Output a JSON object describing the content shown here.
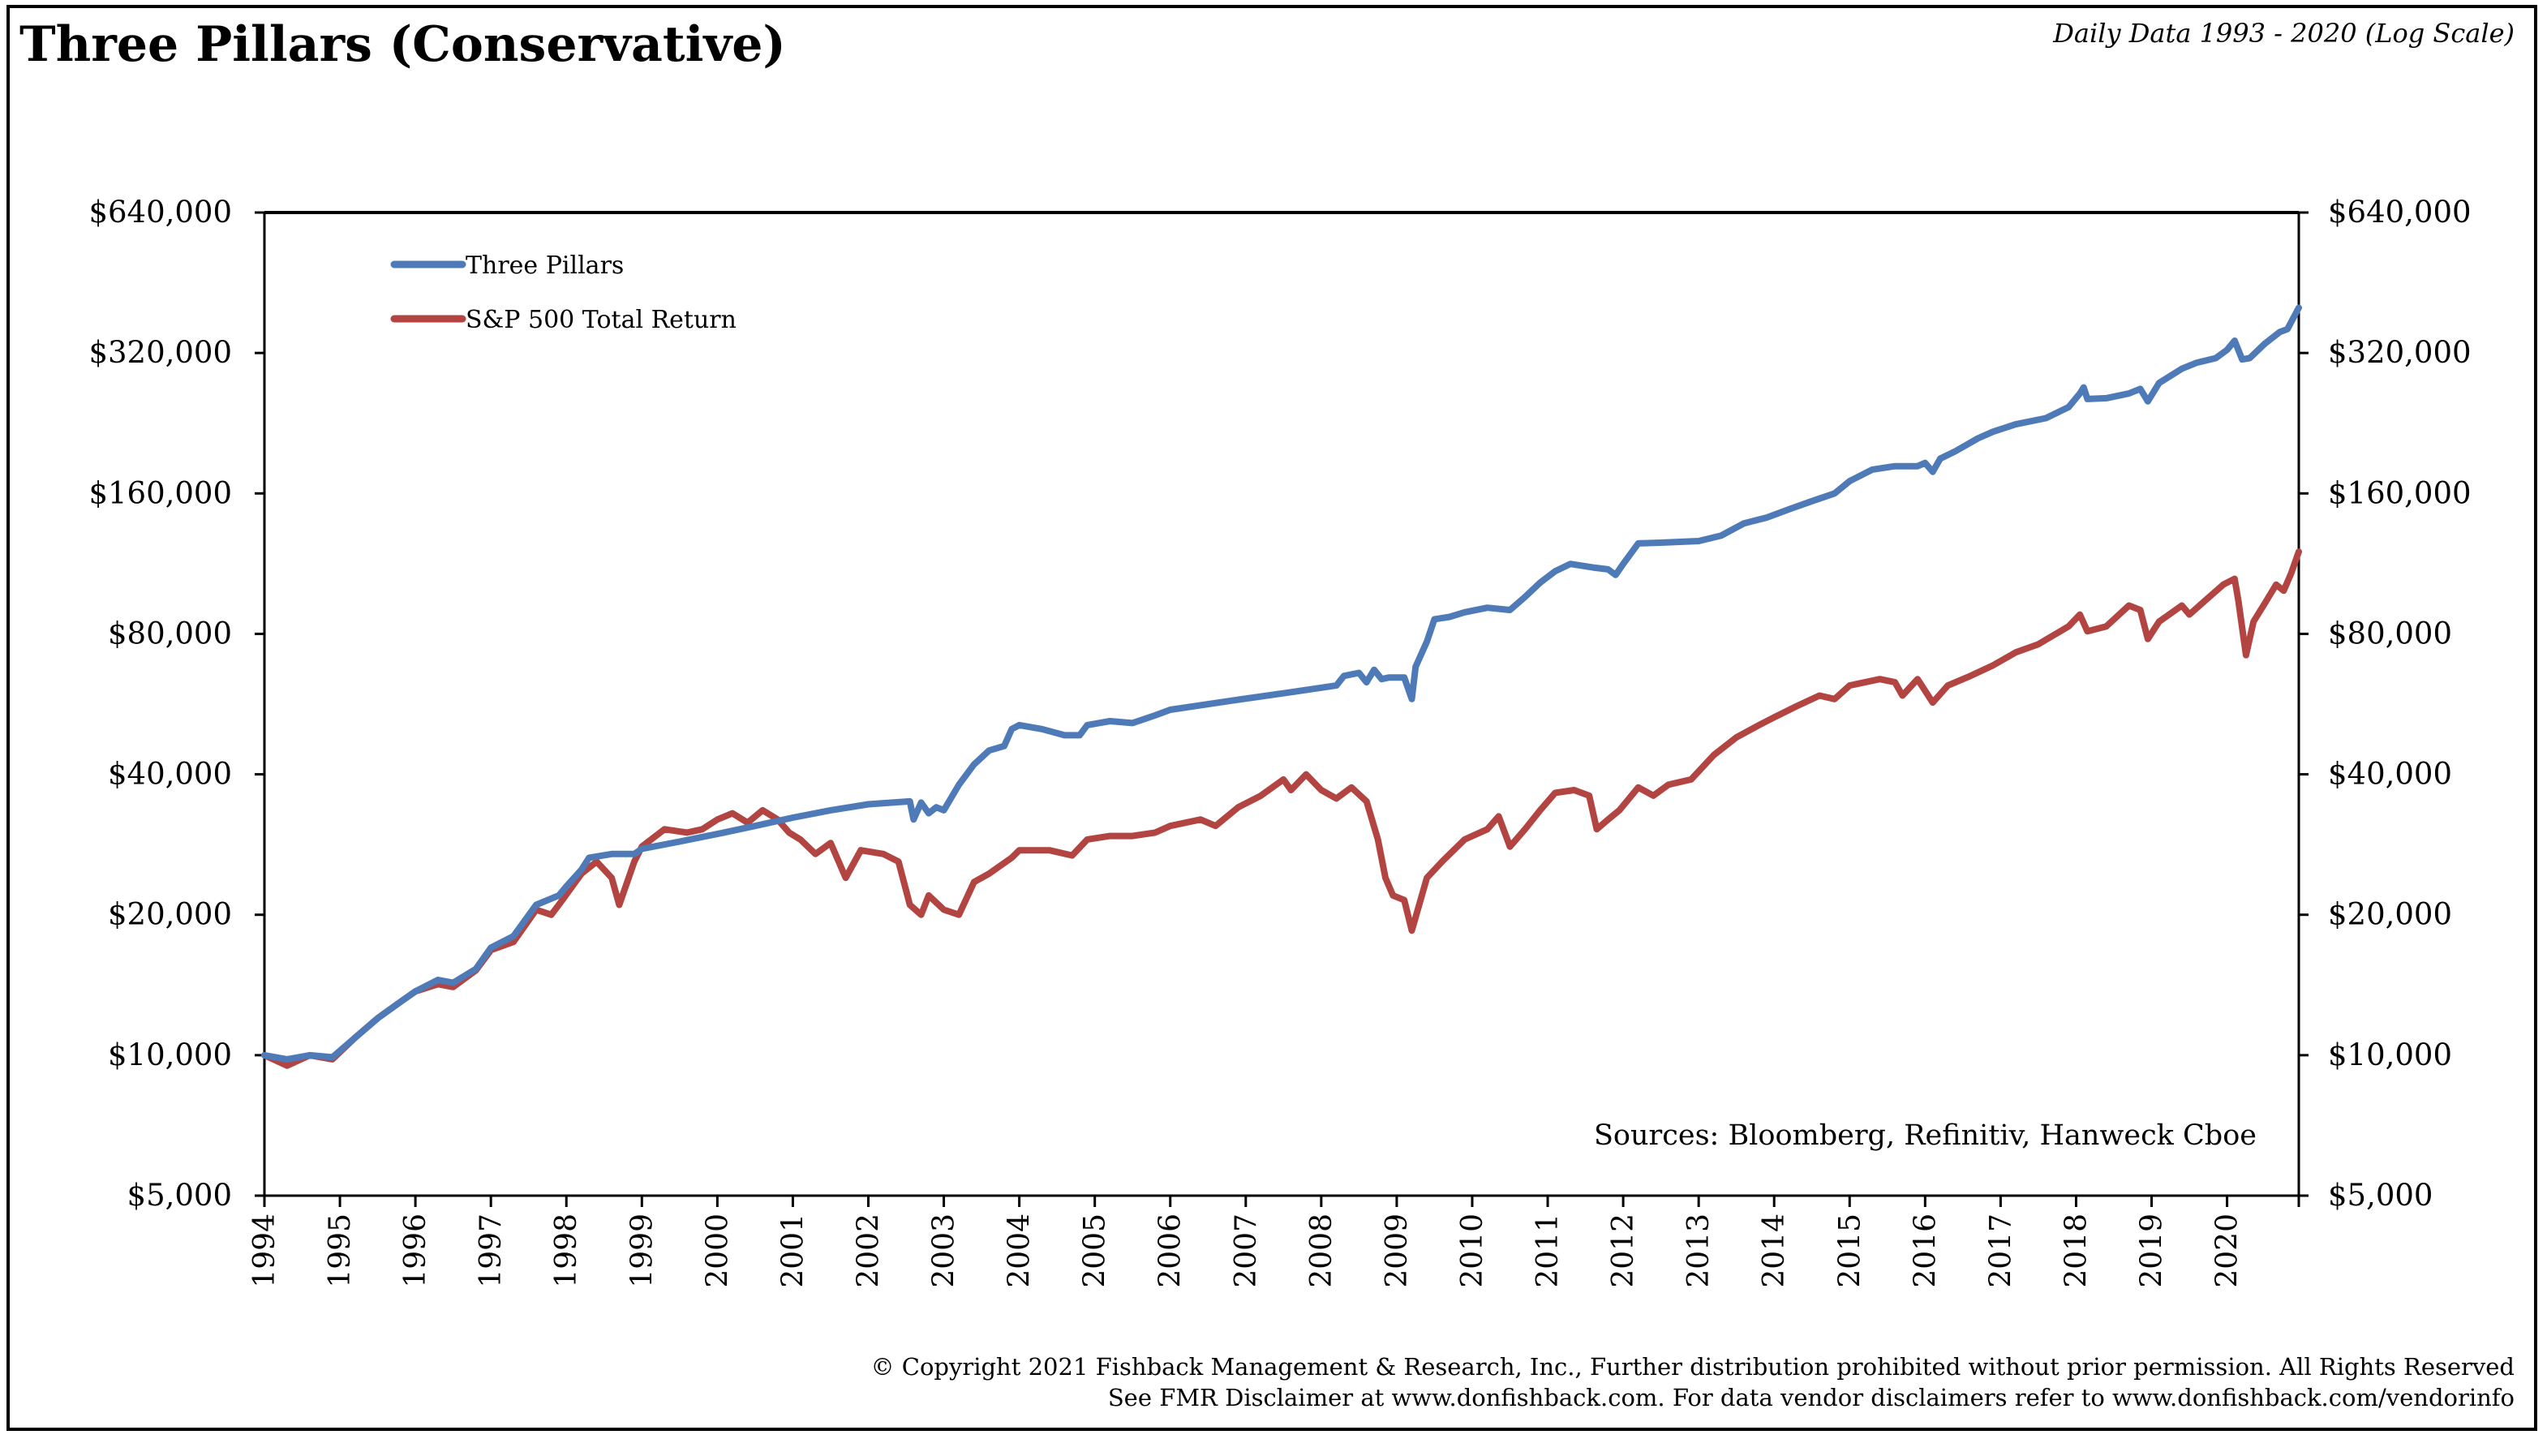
{
  "header": {
    "title": "Three Pillars (Conservative)",
    "subtitle": "Daily Data 1993 - 2020 (Log Scale)"
  },
  "footer": {
    "line1": "© Copyright 2021 Fishback Management & Research, Inc., Further distribution prohibited without prior permission. All Rights Reserved",
    "line2": "See FMR Disclaimer at www.donfishback.com. For data vendor disclaimers refer to www.donfishback.com/vendorinfo"
  },
  "chart_data": {
    "type": "line",
    "title": "Three Pillars (Conservative)",
    "y_scale": "log",
    "ylim": [
      5000,
      640000
    ],
    "y_ticks": [
      5000,
      10000,
      20000,
      40000,
      80000,
      160000,
      320000,
      640000
    ],
    "y_tick_labels": [
      "$5,000",
      "$10,000",
      "$20,000",
      "$40,000",
      "$80,000",
      "$160,000",
      "$320,000",
      "$640,000"
    ],
    "xlim": [
      1994.0,
      2020.95
    ],
    "x_ticks": [
      1994,
      1995,
      1996,
      1997,
      1998,
      1999,
      2000,
      2001,
      2002,
      2003,
      2004,
      2005,
      2006,
      2007,
      2008,
      2009,
      2010,
      2011,
      2012,
      2013,
      2014,
      2015,
      2016,
      2017,
      2018,
      2019,
      2020
    ],
    "x_tick_labels": [
      "1994",
      "1995",
      "1996",
      "1997",
      "1998",
      "1999",
      "2000",
      "2001",
      "2002",
      "2003",
      "2004",
      "2005",
      "2006",
      "2007",
      "2008",
      "2009",
      "2010",
      "2011",
      "2012",
      "2013",
      "2014",
      "2015",
      "2016",
      "2017",
      "2018",
      "2019",
      "2020"
    ],
    "legend_position": "top-left",
    "annotation": "Sources: Bloomberg, Refinitiv, Hanweck Cboe",
    "series": [
      {
        "name": "Three Pillars",
        "color": "#4f7ab8",
        "points": [
          [
            1994.0,
            10000
          ],
          [
            1994.3,
            9800
          ],
          [
            1994.6,
            10000
          ],
          [
            1994.9,
            9900
          ],
          [
            1995.2,
            10900
          ],
          [
            1995.5,
            12000
          ],
          [
            1995.8,
            13000
          ],
          [
            1996.0,
            13700
          ],
          [
            1996.3,
            14500
          ],
          [
            1996.5,
            14300
          ],
          [
            1996.8,
            15300
          ],
          [
            1997.0,
            17000
          ],
          [
            1997.3,
            18000
          ],
          [
            1997.6,
            21000
          ],
          [
            1997.9,
            22000
          ],
          [
            1998.0,
            23000
          ],
          [
            1998.2,
            25000
          ],
          [
            1998.3,
            26500
          ],
          [
            1998.6,
            27000
          ],
          [
            1998.9,
            27000
          ],
          [
            1999.0,
            27700
          ],
          [
            1999.5,
            28700
          ],
          [
            2000.0,
            29800
          ],
          [
            2000.5,
            31000
          ],
          [
            2001.0,
            32300
          ],
          [
            2001.5,
            33500
          ],
          [
            2002.0,
            34500
          ],
          [
            2002.55,
            35000
          ],
          [
            2002.6,
            32000
          ],
          [
            2002.7,
            34800
          ],
          [
            2002.8,
            33000
          ],
          [
            2002.9,
            34000
          ],
          [
            2003.0,
            33500
          ],
          [
            2003.2,
            38000
          ],
          [
            2003.4,
            42000
          ],
          [
            2003.6,
            45000
          ],
          [
            2003.8,
            46000
          ],
          [
            2003.9,
            50000
          ],
          [
            2004.0,
            51000
          ],
          [
            2004.3,
            50000
          ],
          [
            2004.6,
            48500
          ],
          [
            2004.8,
            48500
          ],
          [
            2004.9,
            51000
          ],
          [
            2005.2,
            52000
          ],
          [
            2005.5,
            51500
          ],
          [
            2005.8,
            53500
          ],
          [
            2006.0,
            55000
          ],
          [
            2006.8,
            57500
          ],
          [
            2007.6,
            60000
          ],
          [
            2008.2,
            62000
          ],
          [
            2008.3,
            65000
          ],
          [
            2008.5,
            66000
          ],
          [
            2008.6,
            63000
          ],
          [
            2008.7,
            67000
          ],
          [
            2008.8,
            64000
          ],
          [
            2008.9,
            64500
          ],
          [
            2009.1,
            64500
          ],
          [
            2009.2,
            58000
          ],
          [
            2009.25,
            68000
          ],
          [
            2009.4,
            77000
          ],
          [
            2009.5,
            86000
          ],
          [
            2009.7,
            87000
          ],
          [
            2009.9,
            89000
          ],
          [
            2010.2,
            91000
          ],
          [
            2010.5,
            90000
          ],
          [
            2010.7,
            96000
          ],
          [
            2010.9,
            103000
          ],
          [
            2011.1,
            109000
          ],
          [
            2011.3,
            113000
          ],
          [
            2011.6,
            111000
          ],
          [
            2011.8,
            110000
          ],
          [
            2011.9,
            107000
          ],
          [
            2012.0,
            113000
          ],
          [
            2012.2,
            125000
          ],
          [
            2012.5,
            125500
          ],
          [
            2013.0,
            126500
          ],
          [
            2013.3,
            130000
          ],
          [
            2013.6,
            138000
          ],
          [
            2013.9,
            142000
          ],
          [
            2014.2,
            148000
          ],
          [
            2014.5,
            154000
          ],
          [
            2014.8,
            160000
          ],
          [
            2015.0,
            170000
          ],
          [
            2015.3,
            180000
          ],
          [
            2015.6,
            183000
          ],
          [
            2015.9,
            183000
          ],
          [
            2016.0,
            186000
          ],
          [
            2016.1,
            178000
          ],
          [
            2016.2,
            190000
          ],
          [
            2016.4,
            197000
          ],
          [
            2016.7,
            210000
          ],
          [
            2016.9,
            217000
          ],
          [
            2017.2,
            225000
          ],
          [
            2017.6,
            232000
          ],
          [
            2017.9,
            245000
          ],
          [
            2018.05,
            262000
          ],
          [
            2018.1,
            270000
          ],
          [
            2018.15,
            255000
          ],
          [
            2018.4,
            256000
          ],
          [
            2018.7,
            262000
          ],
          [
            2018.85,
            268000
          ],
          [
            2018.95,
            252000
          ],
          [
            2019.1,
            276000
          ],
          [
            2019.4,
            296000
          ],
          [
            2019.6,
            305000
          ],
          [
            2019.85,
            312000
          ],
          [
            2020.0,
            325000
          ],
          [
            2020.1,
            340000
          ],
          [
            2020.2,
            310000
          ],
          [
            2020.3,
            312000
          ],
          [
            2020.5,
            335000
          ],
          [
            2020.7,
            355000
          ],
          [
            2020.8,
            360000
          ],
          [
            2020.95,
            400000
          ]
        ]
      },
      {
        "name": "S&P 500 Total Return",
        "color": "#b24541",
        "points": [
          [
            1994.0,
            10000
          ],
          [
            1994.3,
            9500
          ],
          [
            1994.6,
            10000
          ],
          [
            1994.9,
            9800
          ],
          [
            1995.2,
            10900
          ],
          [
            1995.5,
            12000
          ],
          [
            1995.8,
            13000
          ],
          [
            1996.0,
            13700
          ],
          [
            1996.3,
            14200
          ],
          [
            1996.5,
            14000
          ],
          [
            1996.8,
            15200
          ],
          [
            1997.0,
            16800
          ],
          [
            1997.3,
            17500
          ],
          [
            1997.6,
            20500
          ],
          [
            1997.8,
            20000
          ],
          [
            1997.9,
            21000
          ],
          [
            1998.2,
            24500
          ],
          [
            1998.4,
            26000
          ],
          [
            1998.6,
            24000
          ],
          [
            1998.7,
            21000
          ],
          [
            1998.9,
            26000
          ],
          [
            1999.0,
            28000
          ],
          [
            1999.3,
            30500
          ],
          [
            1999.6,
            30000
          ],
          [
            1999.8,
            30500
          ],
          [
            2000.0,
            32000
          ],
          [
            2000.2,
            33000
          ],
          [
            2000.4,
            31500
          ],
          [
            2000.6,
            33500
          ],
          [
            2000.8,
            32000
          ],
          [
            2000.95,
            30000
          ],
          [
            2001.1,
            29000
          ],
          [
            2001.3,
            27000
          ],
          [
            2001.5,
            28500
          ],
          [
            2001.7,
            24000
          ],
          [
            2001.9,
            27500
          ],
          [
            2002.2,
            27000
          ],
          [
            2002.4,
            26000
          ],
          [
            2002.55,
            21000
          ],
          [
            2002.7,
            20000
          ],
          [
            2002.8,
            22000
          ],
          [
            2003.0,
            20500
          ],
          [
            2003.2,
            20000
          ],
          [
            2003.4,
            23500
          ],
          [
            2003.6,
            24500
          ],
          [
            2003.9,
            26500
          ],
          [
            2004.0,
            27500
          ],
          [
            2004.4,
            27500
          ],
          [
            2004.7,
            26800
          ],
          [
            2004.9,
            29000
          ],
          [
            2005.2,
            29500
          ],
          [
            2005.5,
            29500
          ],
          [
            2005.8,
            30000
          ],
          [
            2006.0,
            31000
          ],
          [
            2006.4,
            32000
          ],
          [
            2006.6,
            31000
          ],
          [
            2006.9,
            34000
          ],
          [
            2007.2,
            36000
          ],
          [
            2007.5,
            39000
          ],
          [
            2007.6,
            37000
          ],
          [
            2007.8,
            40000
          ],
          [
            2008.0,
            37000
          ],
          [
            2008.2,
            35500
          ],
          [
            2008.4,
            37500
          ],
          [
            2008.6,
            35000
          ],
          [
            2008.75,
            29000
          ],
          [
            2008.85,
            24000
          ],
          [
            2008.95,
            22000
          ],
          [
            2009.1,
            21500
          ],
          [
            2009.2,
            18500
          ],
          [
            2009.4,
            24000
          ],
          [
            2009.6,
            26000
          ],
          [
            2009.9,
            29000
          ],
          [
            2010.2,
            30500
          ],
          [
            2010.35,
            32500
          ],
          [
            2010.5,
            28000
          ],
          [
            2010.7,
            30500
          ],
          [
            2010.9,
            33500
          ],
          [
            2011.1,
            36500
          ],
          [
            2011.35,
            37000
          ],
          [
            2011.55,
            36000
          ],
          [
            2011.65,
            30500
          ],
          [
            2011.8,
            32000
          ],
          [
            2011.95,
            33500
          ],
          [
            2012.2,
            37500
          ],
          [
            2012.4,
            36000
          ],
          [
            2012.6,
            38000
          ],
          [
            2012.9,
            39000
          ],
          [
            2013.2,
            44000
          ],
          [
            2013.5,
            48000
          ],
          [
            2013.8,
            51000
          ],
          [
            2014.0,
            53000
          ],
          [
            2014.3,
            56000
          ],
          [
            2014.6,
            59000
          ],
          [
            2014.8,
            58000
          ],
          [
            2015.0,
            62000
          ],
          [
            2015.4,
            64000
          ],
          [
            2015.6,
            63000
          ],
          [
            2015.7,
            59000
          ],
          [
            2015.9,
            64000
          ],
          [
            2016.1,
            57000
          ],
          [
            2016.3,
            62000
          ],
          [
            2016.6,
            65000
          ],
          [
            2016.9,
            68500
          ],
          [
            2017.2,
            73000
          ],
          [
            2017.5,
            76000
          ],
          [
            2017.9,
            83000
          ],
          [
            2018.05,
            88000
          ],
          [
            2018.15,
            81000
          ],
          [
            2018.4,
            83000
          ],
          [
            2018.7,
            92000
          ],
          [
            2018.85,
            90000
          ],
          [
            2018.95,
            78000
          ],
          [
            2019.1,
            85000
          ],
          [
            2019.4,
            92000
          ],
          [
            2019.5,
            88000
          ],
          [
            2019.7,
            94000
          ],
          [
            2019.95,
            102000
          ],
          [
            2020.1,
            105000
          ],
          [
            2020.15,
            94000
          ],
          [
            2020.25,
            72000
          ],
          [
            2020.35,
            85000
          ],
          [
            2020.5,
            93000
          ],
          [
            2020.65,
            102000
          ],
          [
            2020.75,
            99000
          ],
          [
            2020.85,
            108000
          ],
          [
            2020.95,
            120000
          ]
        ]
      }
    ]
  }
}
